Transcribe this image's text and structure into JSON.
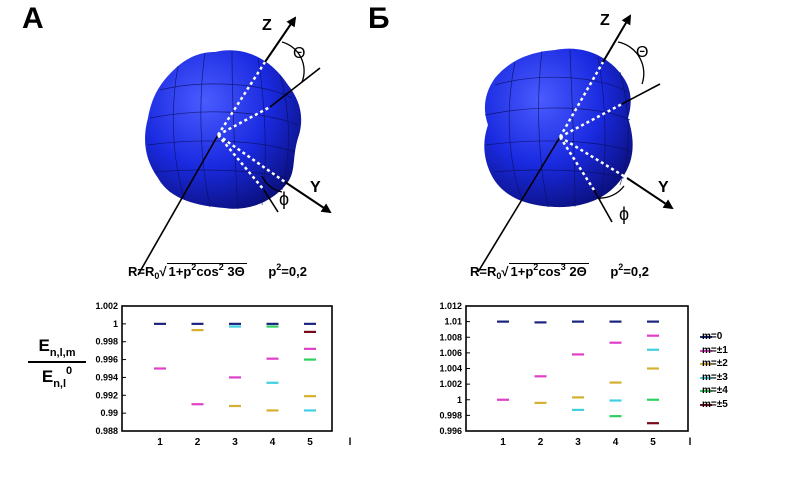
{
  "figure": {
    "panel_a": {
      "letter": "A",
      "axis_z": "Z",
      "axis_y": "Y",
      "angle_theta": "Θ",
      "angle_phi": "ϕ",
      "formula": {
        "r": "R=R",
        "r_sub": "0",
        "root_body": "1+p",
        "p_sup": "2",
        "cos_text": "cos",
        "cos_sup": "2",
        "angle": " 3Θ",
        "p2": "p",
        "p2_sup": "2",
        "p2_val": "=0,2"
      }
    },
    "panel_b": {
      "letter": "Б",
      "axis_z": "Z",
      "axis_y": "Y",
      "angle_theta": "Θ",
      "angle_phi": "ϕ",
      "formula": {
        "r": "R=R",
        "r_sub": "0",
        "root_body": "1+p",
        "p_sup": "2",
        "cos_text": "cos",
        "cos_sup": "3",
        "angle": " 2Θ",
        "p2": "p",
        "p2_sup": "2",
        "p2_val": "=0,2"
      }
    },
    "ylabel": {
      "num_main": "E",
      "num_sub": "n,l,m",
      "den_main": "E",
      "den_sub": "n,l",
      "den_sup": "0"
    },
    "legend": [
      {
        "label": "m=0",
        "color": "#1a237e"
      },
      {
        "label": "m=±1",
        "color": "#e040c8"
      },
      {
        "label": "m=±2",
        "color": "#d4b030"
      },
      {
        "label": "m=±3",
        "color": "#40d0e0"
      },
      {
        "label": "m=±4",
        "color": "#30d060"
      },
      {
        "label": "m=±5",
        "color": "#7a0a1a"
      }
    ]
  },
  "chart_data": [
    {
      "type": "scatter",
      "xlabel": "l",
      "x_ticks": [
        "1",
        "2",
        "3",
        "4",
        "5"
      ],
      "ylim": [
        0.988,
        1.002
      ],
      "y_ticks": [
        "0.988",
        "0.99",
        "0.992",
        "0.994",
        "0.996",
        "0.998",
        "1",
        "1.002"
      ],
      "series": [
        {
          "name": "m=0",
          "color": "#1a237e",
          "points": [
            [
              1,
              1.0
            ],
            [
              2,
              1.0
            ],
            [
              3,
              1.0
            ],
            [
              4,
              1.0
            ],
            [
              5,
              1.0
            ]
          ]
        },
        {
          "name": "m=±1",
          "color": "#e040c8",
          "points": [
            [
              1,
              0.995
            ],
            [
              2,
              0.991
            ],
            [
              3,
              0.994
            ],
            [
              4,
              0.9961
            ],
            [
              5,
              0.9972
            ]
          ]
        },
        {
          "name": "m=±2",
          "color": "#d4b030",
          "points": [
            [
              2,
              0.9993
            ],
            [
              3,
              0.9908
            ],
            [
              4,
              0.9903
            ],
            [
              5,
              0.9919
            ]
          ]
        },
        {
          "name": "m=±3",
          "color": "#40d0e0",
          "points": [
            [
              3,
              0.9997
            ],
            [
              4,
              0.9934
            ],
            [
              5,
              0.9903
            ]
          ]
        },
        {
          "name": "m=±4",
          "color": "#30d060",
          "points": [
            [
              4,
              0.9997
            ],
            [
              5,
              0.996
            ]
          ]
        },
        {
          "name": "m=±5",
          "color": "#7a0a1a",
          "points": [
            [
              5,
              0.9991
            ]
          ]
        }
      ]
    },
    {
      "type": "scatter",
      "xlabel": "l",
      "x_ticks": [
        "1",
        "2",
        "3",
        "4",
        "5"
      ],
      "ylim": [
        0.996,
        1.012
      ],
      "y_ticks": [
        "0.996",
        "0.998",
        "1",
        "1.002",
        "1.004",
        "1.006",
        "1.008",
        "1.01",
        "1.012"
      ],
      "series": [
        {
          "name": "m=0",
          "color": "#1a237e",
          "points": [
            [
              1,
              1.01
            ],
            [
              2,
              1.0099
            ],
            [
              3,
              1.01
            ],
            [
              4,
              1.01
            ],
            [
              5,
              1.01
            ]
          ]
        },
        {
          "name": "m=±1",
          "color": "#e040c8",
          "points": [
            [
              1,
              1.0
            ],
            [
              2,
              1.003
            ],
            [
              3,
              1.0058
            ],
            [
              4,
              1.0073
            ],
            [
              5,
              1.0082
            ]
          ]
        },
        {
          "name": "m=±2",
          "color": "#d4b030",
          "points": [
            [
              2,
              0.9996
            ],
            [
              3,
              1.0003
            ],
            [
              4,
              1.0022
            ],
            [
              5,
              1.004
            ]
          ]
        },
        {
          "name": "m=±3",
          "color": "#40d0e0",
          "points": [
            [
              3,
              0.9987
            ],
            [
              4,
              0.9999
            ],
            [
              5,
              1.0064
            ]
          ]
        },
        {
          "name": "m=±4",
          "color": "#30d060",
          "points": [
            [
              4,
              0.9979
            ],
            [
              5,
              1.0
            ]
          ]
        },
        {
          "name": "m=±5",
          "color": "#7a0a1a",
          "points": [
            [
              5,
              0.997
            ]
          ]
        }
      ]
    }
  ]
}
